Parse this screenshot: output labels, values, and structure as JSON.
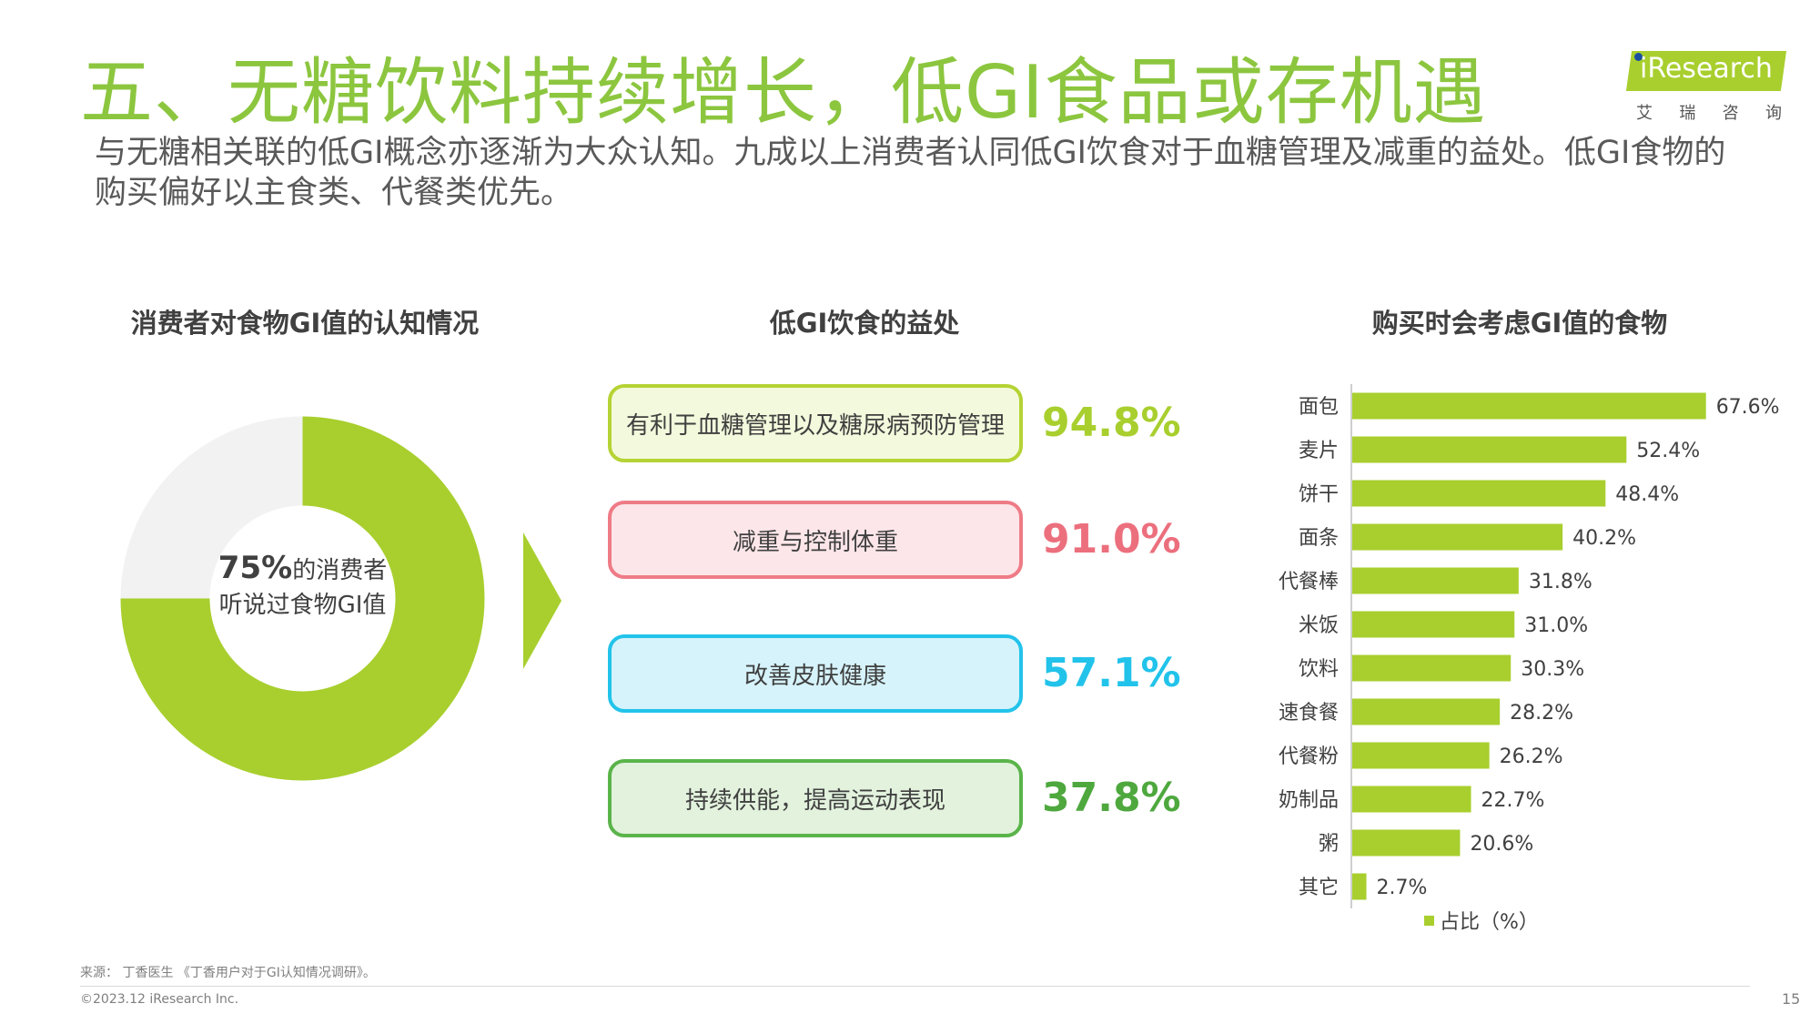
{
  "header": {
    "title": "五、无糖饮料持续增长，低GI食品或存机遇",
    "subtitle": "与无糖相关联的低GI概念亦逐渐为大众认知。九成以上消费者认同低GI饮食对于血糖管理及减重的益处。低GI食物的购买偏好以主食类、代餐类优先。",
    "logo_text": "iResearch",
    "logo_cn": [
      "艾",
      "瑞",
      "咨",
      "询"
    ]
  },
  "awareness": {
    "title": "消费者对食物GI值的认知情况",
    "pct_label": "75%",
    "line1_rest": "的消费者",
    "line2": "听说过食物GI值"
  },
  "benefits": {
    "title": "低GI饮食的益处",
    "items": [
      {
        "label": "有利于血糖管理以及糖尿病预防管理",
        "pct": "94.8%",
        "border": "#b5d334",
        "fill": "#f3f9dc",
        "text_color": "#a8cf2e"
      },
      {
        "label": "减重与控制体重",
        "pct": "91.0%",
        "border": "#ee7b86",
        "fill": "#fde6e9",
        "text_color": "#ec6f7d"
      },
      {
        "label": "改善皮肤健康",
        "pct": "57.1%",
        "border": "#22c3ea",
        "fill": "#d6f3fb",
        "text_color": "#22c3ea"
      },
      {
        "label": "持续供能，提高运动表现",
        "pct": "37.8%",
        "border": "#5ab44a",
        "fill": "#e2f2dd",
        "text_color": "#4ea83e"
      }
    ]
  },
  "foods": {
    "title": "购买时会考虑GI值的食物",
    "legend": "占比（%）"
  },
  "chart_data": [
    {
      "type": "pie",
      "title": "消费者对食物GI值的认知情况",
      "labels": [
        "",
        ""
      ],
      "values": [
        75,
        25
      ],
      "colors": [
        "#a8cf2e",
        "#f2f2f2"
      ],
      "hole": true
    },
    {
      "type": "bar",
      "orientation": "horizontal",
      "title": "购买时会考虑GI值的食物",
      "categories": [
        "面包",
        "麦片",
        "饼干",
        "面条",
        "代餐棒",
        "米饭",
        "饮料",
        "速食餐",
        "代餐粉",
        "奶制品",
        "粥",
        "其它"
      ],
      "values": [
        67.6,
        52.4,
        48.4,
        40.2,
        31.8,
        31.0,
        30.3,
        28.2,
        26.2,
        22.7,
        20.6,
        2.7
      ],
      "value_labels": [
        "67.6%",
        "52.4%",
        "48.4%",
        "40.2%",
        "31.8%",
        "31.0%",
        "30.3%",
        "28.2%",
        "26.2%",
        "22.7%",
        "20.6%",
        "2.7%"
      ],
      "series_name": "占比（%）",
      "color": "#a8cf2e",
      "xlim": [
        0,
        80
      ],
      "grid": false,
      "legend_position": "bottom"
    }
  ],
  "footer": {
    "source": "来源：  丁香医生 《丁香用户对于GI认知情况调研》。",
    "copyright": "©2023.12 iResearch Inc.",
    "page": "15"
  }
}
